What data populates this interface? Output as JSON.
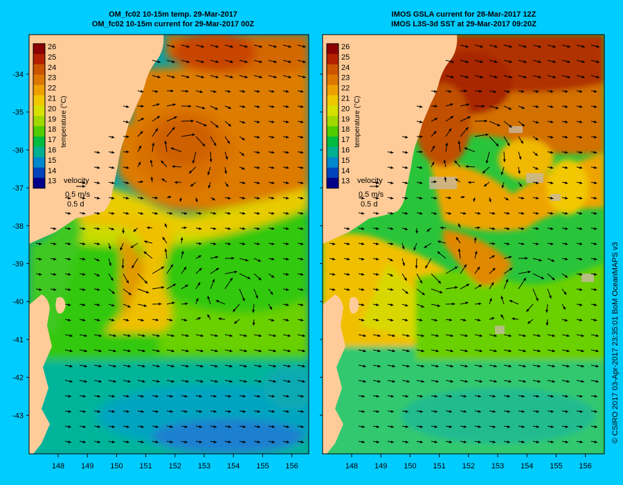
{
  "left_panel": {
    "title_line1": "OM_fc02 10-15m temp. 29-Mar-2017",
    "title_line2": "OM_fc02 10-15m current for 29-Mar-2017 00Z"
  },
  "right_panel": {
    "title_line1": "IMOS GSLA current for 28-Mar-2017 12Z",
    "title_line2": "IMOS L3S-3d SST at 29-Mar-2017 09:20Z"
  },
  "colorbar": {
    "title": "temperature (°C)",
    "ticks": [
      "26",
      "25",
      "24",
      "23",
      "22",
      "21",
      "20",
      "19",
      "18",
      "17",
      "16",
      "15",
      "14",
      "13"
    ],
    "colors": [
      "#8b0000",
      "#b22000",
      "#cc5500",
      "#dd7700",
      "#eea000",
      "#f0c800",
      "#d8e000",
      "#a0d800",
      "#50cc00",
      "#00bb40",
      "#00b090",
      "#0088cc",
      "#0044bb",
      "#000088"
    ]
  },
  "velocity_legend": {
    "label": "velocity",
    "speed": "0.5 m/s",
    "duration": "0.5 d"
  },
  "axes": {
    "lat_ticks": [
      "-34",
      "-35",
      "-36",
      "-37",
      "-38",
      "-39",
      "-40",
      "-41",
      "-42",
      "-43"
    ],
    "lon_ticks": [
      "148",
      "149",
      "150",
      "151",
      "152",
      "153",
      "154",
      "155",
      "156"
    ]
  },
  "credit": "© CSIRO 2017   03-Apr-2017 23:35:01 BoM OceanMAPS v3"
}
